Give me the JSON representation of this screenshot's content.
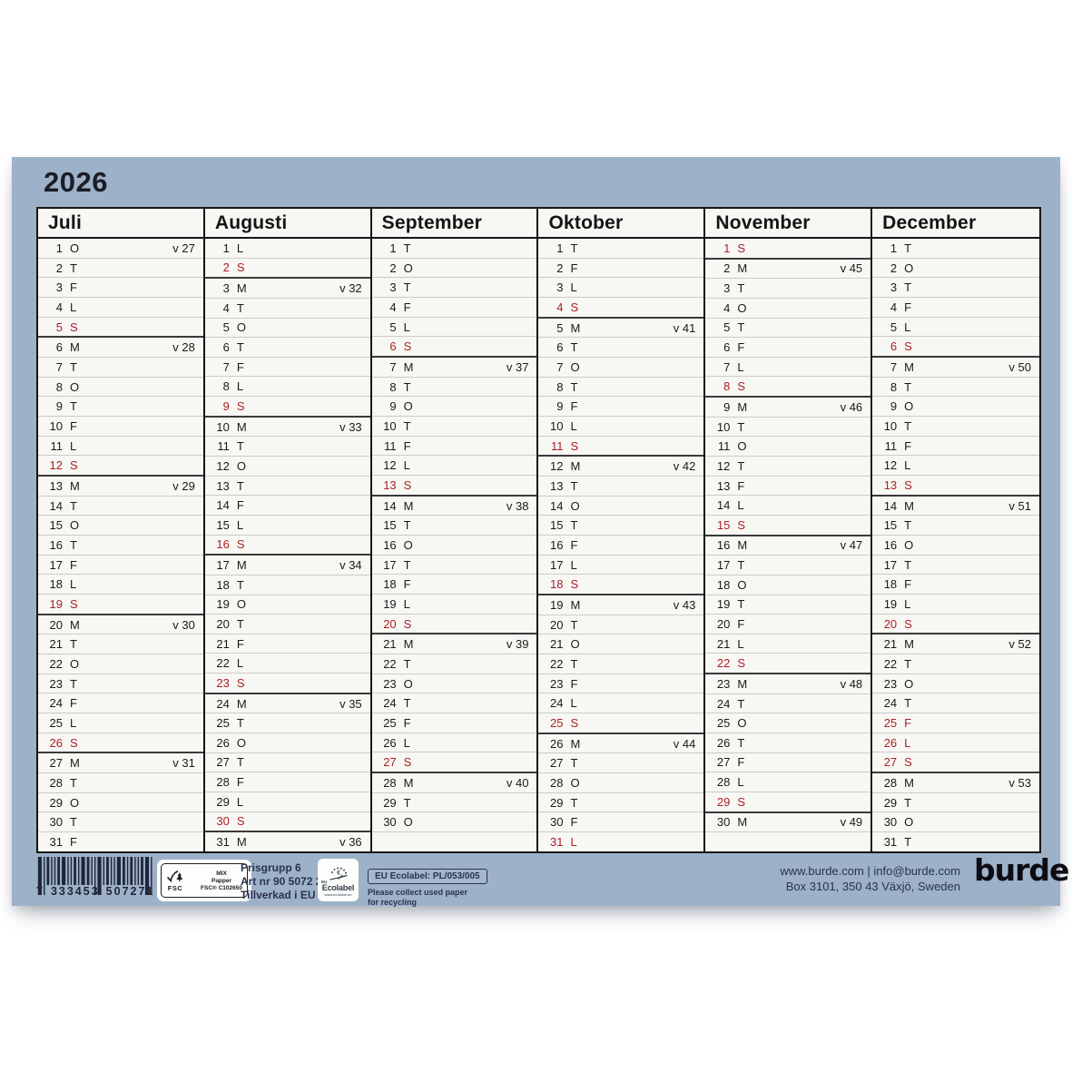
{
  "title": "2026",
  "colors": {
    "background": "#9db1c8",
    "paper": "#f7f7f4",
    "ink": "#1a1a1a",
    "holiday_red": "#ac1f24",
    "footer_navy": "#2b3252"
  },
  "calendar": {
    "rows": 31,
    "months": [
      {
        "name": "Juli",
        "days": [
          [
            1,
            "O",
            "v 27",
            0
          ],
          [
            2,
            "T",
            "",
            0
          ],
          [
            3,
            "F",
            "",
            0
          ],
          [
            4,
            "L",
            "",
            0
          ],
          [
            5,
            "S",
            "",
            1
          ],
          [
            6,
            "M",
            "v 28",
            0
          ],
          [
            7,
            "T",
            "",
            0
          ],
          [
            8,
            "O",
            "",
            0
          ],
          [
            9,
            "T",
            "",
            0
          ],
          [
            10,
            "F",
            "",
            0
          ],
          [
            11,
            "L",
            "",
            0
          ],
          [
            12,
            "S",
            "",
            1
          ],
          [
            13,
            "M",
            "v 29",
            0
          ],
          [
            14,
            "T",
            "",
            0
          ],
          [
            15,
            "O",
            "",
            0
          ],
          [
            16,
            "T",
            "",
            0
          ],
          [
            17,
            "F",
            "",
            0
          ],
          [
            18,
            "L",
            "",
            0
          ],
          [
            19,
            "S",
            "",
            1
          ],
          [
            20,
            "M",
            "v 30",
            0
          ],
          [
            21,
            "T",
            "",
            0
          ],
          [
            22,
            "O",
            "",
            0
          ],
          [
            23,
            "T",
            "",
            0
          ],
          [
            24,
            "F",
            "",
            0
          ],
          [
            25,
            "L",
            "",
            0
          ],
          [
            26,
            "S",
            "",
            1
          ],
          [
            27,
            "M",
            "v 31",
            0
          ],
          [
            28,
            "T",
            "",
            0
          ],
          [
            29,
            "O",
            "",
            0
          ],
          [
            30,
            "T",
            "",
            0
          ],
          [
            31,
            "F",
            "",
            0
          ]
        ]
      },
      {
        "name": "Augusti",
        "days": [
          [
            1,
            "L",
            "",
            0
          ],
          [
            2,
            "S",
            "",
            1
          ],
          [
            3,
            "M",
            "v 32",
            0
          ],
          [
            4,
            "T",
            "",
            0
          ],
          [
            5,
            "O",
            "",
            0
          ],
          [
            6,
            "T",
            "",
            0
          ],
          [
            7,
            "F",
            "",
            0
          ],
          [
            8,
            "L",
            "",
            0
          ],
          [
            9,
            "S",
            "",
            1
          ],
          [
            10,
            "M",
            "v 33",
            0
          ],
          [
            11,
            "T",
            "",
            0
          ],
          [
            12,
            "O",
            "",
            0
          ],
          [
            13,
            "T",
            "",
            0
          ],
          [
            14,
            "F",
            "",
            0
          ],
          [
            15,
            "L",
            "",
            0
          ],
          [
            16,
            "S",
            "",
            1
          ],
          [
            17,
            "M",
            "v 34",
            0
          ],
          [
            18,
            "T",
            "",
            0
          ],
          [
            19,
            "O",
            "",
            0
          ],
          [
            20,
            "T",
            "",
            0
          ],
          [
            21,
            "F",
            "",
            0
          ],
          [
            22,
            "L",
            "",
            0
          ],
          [
            23,
            "S",
            "",
            1
          ],
          [
            24,
            "M",
            "v 35",
            0
          ],
          [
            25,
            "T",
            "",
            0
          ],
          [
            26,
            "O",
            "",
            0
          ],
          [
            27,
            "T",
            "",
            0
          ],
          [
            28,
            "F",
            "",
            0
          ],
          [
            29,
            "L",
            "",
            0
          ],
          [
            30,
            "S",
            "",
            1
          ],
          [
            31,
            "M",
            "v 36",
            0
          ]
        ]
      },
      {
        "name": "September",
        "days": [
          [
            1,
            "T",
            "",
            0
          ],
          [
            2,
            "O",
            "",
            0
          ],
          [
            3,
            "T",
            "",
            0
          ],
          [
            4,
            "F",
            "",
            0
          ],
          [
            5,
            "L",
            "",
            0
          ],
          [
            6,
            "S",
            "",
            1
          ],
          [
            7,
            "M",
            "v 37",
            0
          ],
          [
            8,
            "T",
            "",
            0
          ],
          [
            9,
            "O",
            "",
            0
          ],
          [
            10,
            "T",
            "",
            0
          ],
          [
            11,
            "F",
            "",
            0
          ],
          [
            12,
            "L",
            "",
            0
          ],
          [
            13,
            "S",
            "",
            1
          ],
          [
            14,
            "M",
            "v 38",
            0
          ],
          [
            15,
            "T",
            "",
            0
          ],
          [
            16,
            "O",
            "",
            0
          ],
          [
            17,
            "T",
            "",
            0
          ],
          [
            18,
            "F",
            "",
            0
          ],
          [
            19,
            "L",
            "",
            0
          ],
          [
            20,
            "S",
            "",
            1
          ],
          [
            21,
            "M",
            "v 39",
            0
          ],
          [
            22,
            "T",
            "",
            0
          ],
          [
            23,
            "O",
            "",
            0
          ],
          [
            24,
            "T",
            "",
            0
          ],
          [
            25,
            "F",
            "",
            0
          ],
          [
            26,
            "L",
            "",
            0
          ],
          [
            27,
            "S",
            "",
            1
          ],
          [
            28,
            "M",
            "v 40",
            0
          ],
          [
            29,
            "T",
            "",
            0
          ],
          [
            30,
            "O",
            "",
            0
          ]
        ]
      },
      {
        "name": "Oktober",
        "days": [
          [
            1,
            "T",
            "",
            0
          ],
          [
            2,
            "F",
            "",
            0
          ],
          [
            3,
            "L",
            "",
            0
          ],
          [
            4,
            "S",
            "",
            1
          ],
          [
            5,
            "M",
            "v 41",
            0
          ],
          [
            6,
            "T",
            "",
            0
          ],
          [
            7,
            "O",
            "",
            0
          ],
          [
            8,
            "T",
            "",
            0
          ],
          [
            9,
            "F",
            "",
            0
          ],
          [
            10,
            "L",
            "",
            0
          ],
          [
            11,
            "S",
            "",
            1
          ],
          [
            12,
            "M",
            "v 42",
            0
          ],
          [
            13,
            "T",
            "",
            0
          ],
          [
            14,
            "O",
            "",
            0
          ],
          [
            15,
            "T",
            "",
            0
          ],
          [
            16,
            "F",
            "",
            0
          ],
          [
            17,
            "L",
            "",
            0
          ],
          [
            18,
            "S",
            "",
            1
          ],
          [
            19,
            "M",
            "v 43",
            0
          ],
          [
            20,
            "T",
            "",
            0
          ],
          [
            21,
            "O",
            "",
            0
          ],
          [
            22,
            "T",
            "",
            0
          ],
          [
            23,
            "F",
            "",
            0
          ],
          [
            24,
            "L",
            "",
            0
          ],
          [
            25,
            "S",
            "",
            1
          ],
          [
            26,
            "M",
            "v 44",
            0
          ],
          [
            27,
            "T",
            "",
            0
          ],
          [
            28,
            "O",
            "",
            0
          ],
          [
            29,
            "T",
            "",
            0
          ],
          [
            30,
            "F",
            "",
            0
          ],
          [
            31,
            "L",
            "",
            1
          ]
        ]
      },
      {
        "name": "November",
        "days": [
          [
            1,
            "S",
            "",
            1
          ],
          [
            2,
            "M",
            "v 45",
            0
          ],
          [
            3,
            "T",
            "",
            0
          ],
          [
            4,
            "O",
            "",
            0
          ],
          [
            5,
            "T",
            "",
            0
          ],
          [
            6,
            "F",
            "",
            0
          ],
          [
            7,
            "L",
            "",
            0
          ],
          [
            8,
            "S",
            "",
            1
          ],
          [
            9,
            "M",
            "v 46",
            0
          ],
          [
            10,
            "T",
            "",
            0
          ],
          [
            11,
            "O",
            "",
            0
          ],
          [
            12,
            "T",
            "",
            0
          ],
          [
            13,
            "F",
            "",
            0
          ],
          [
            14,
            "L",
            "",
            0
          ],
          [
            15,
            "S",
            "",
            1
          ],
          [
            16,
            "M",
            "v 47",
            0
          ],
          [
            17,
            "T",
            "",
            0
          ],
          [
            18,
            "O",
            "",
            0
          ],
          [
            19,
            "T",
            "",
            0
          ],
          [
            20,
            "F",
            "",
            0
          ],
          [
            21,
            "L",
            "",
            0
          ],
          [
            22,
            "S",
            "",
            1
          ],
          [
            23,
            "M",
            "v 48",
            0
          ],
          [
            24,
            "T",
            "",
            0
          ],
          [
            25,
            "O",
            "",
            0
          ],
          [
            26,
            "T",
            "",
            0
          ],
          [
            27,
            "F",
            "",
            0
          ],
          [
            28,
            "L",
            "",
            0
          ],
          [
            29,
            "S",
            "",
            1
          ],
          [
            30,
            "M",
            "v 49",
            0
          ]
        ]
      },
      {
        "name": "December",
        "days": [
          [
            1,
            "T",
            "",
            0
          ],
          [
            2,
            "O",
            "",
            0
          ],
          [
            3,
            "T",
            "",
            0
          ],
          [
            4,
            "F",
            "",
            0
          ],
          [
            5,
            "L",
            "",
            0
          ],
          [
            6,
            "S",
            "",
            1
          ],
          [
            7,
            "M",
            "v 50",
            0
          ],
          [
            8,
            "T",
            "",
            0
          ],
          [
            9,
            "O",
            "",
            0
          ],
          [
            10,
            "T",
            "",
            0
          ],
          [
            11,
            "F",
            "",
            0
          ],
          [
            12,
            "L",
            "",
            0
          ],
          [
            13,
            "S",
            "",
            1
          ],
          [
            14,
            "M",
            "v 51",
            0
          ],
          [
            15,
            "T",
            "",
            0
          ],
          [
            16,
            "O",
            "",
            0
          ],
          [
            17,
            "T",
            "",
            0
          ],
          [
            18,
            "F",
            "",
            0
          ],
          [
            19,
            "L",
            "",
            0
          ],
          [
            20,
            "S",
            "",
            1
          ],
          [
            21,
            "M",
            "v 52",
            0
          ],
          [
            22,
            "T",
            "",
            0
          ],
          [
            23,
            "O",
            "",
            0
          ],
          [
            24,
            "T",
            "",
            0
          ],
          [
            25,
            "F",
            "",
            1
          ],
          [
            26,
            "L",
            "",
            1
          ],
          [
            27,
            "S",
            "",
            1
          ],
          [
            28,
            "M",
            "v 53",
            0
          ],
          [
            29,
            "T",
            "",
            0
          ],
          [
            30,
            "O",
            "",
            0
          ],
          [
            31,
            "T",
            "",
            0
          ]
        ]
      }
    ]
  },
  "footer": {
    "barcode_digit_groups": [
      "7",
      "333453",
      "507271"
    ],
    "fsc": {
      "logo_word": "FSC",
      "lines": [
        "MIX",
        "Papper",
        "FSC® C102650"
      ]
    },
    "print_info": [
      "Prisgrupp 6",
      "Art nr 90 5072 27",
      "Tillverkad i EU"
    ],
    "ecolabel": {
      "eu": "EU",
      "word": "Ecolabel",
      "url": "www.ecolabel.eu",
      "cert": "EU Ecolabel: PL/053/005",
      "note_line1": "Please collect used paper",
      "note_line2": "for recycling"
    },
    "contact": {
      "line1": "www.burde.com  |  info@burde.com",
      "line2": "Box 3101, 350 43 Växjö, Sweden"
    },
    "brand": "burde"
  }
}
